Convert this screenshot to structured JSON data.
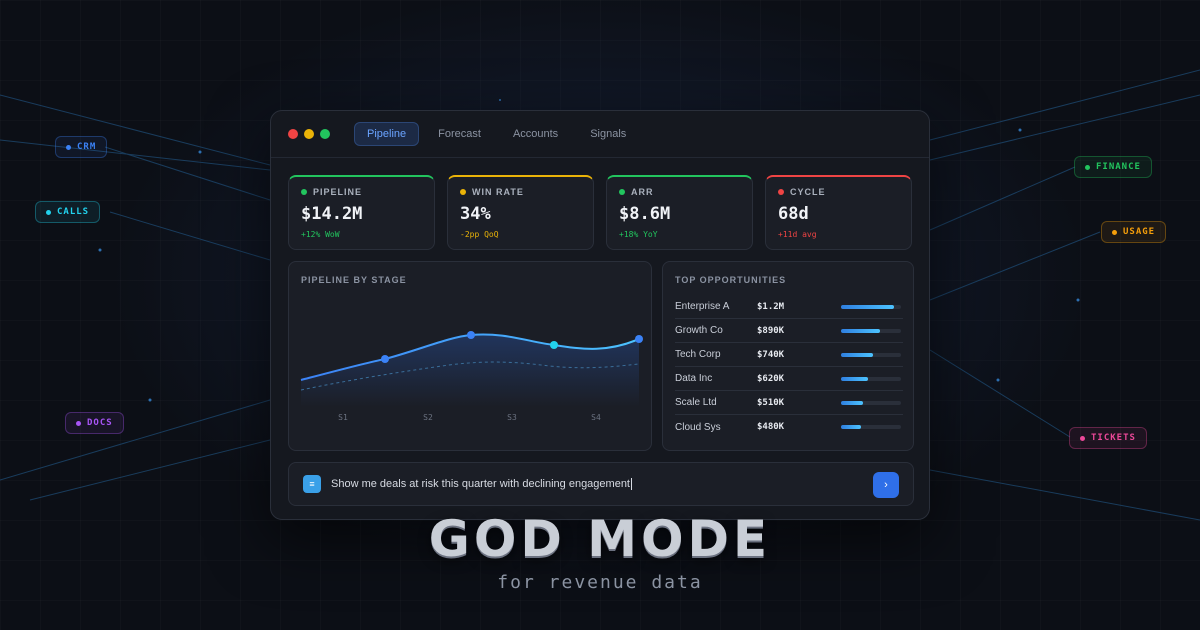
{
  "window": {
    "tabs": [
      {
        "label": "Pipeline",
        "active": true
      },
      {
        "label": "Forecast",
        "active": false
      },
      {
        "label": "Accounts",
        "active": false
      },
      {
        "label": "Signals",
        "active": false
      }
    ]
  },
  "kpis": [
    {
      "label": "PIPELINE",
      "value": "$14.2M",
      "delta": "+12% WoW",
      "color": "#22c55e"
    },
    {
      "label": "WIN RATE",
      "value": "34%",
      "delta": "-2pp QoQ",
      "color": "#eab308"
    },
    {
      "label": "ARR",
      "value": "$8.6M",
      "delta": "+18% YoY",
      "color": "#22c55e"
    },
    {
      "label": "CYCLE",
      "value": "68d",
      "delta": "+11d avg",
      "color": "#ef4444"
    }
  ],
  "pipeline_chart": {
    "title": "PIPELINE BY STAGE",
    "stages": [
      "S1",
      "S2",
      "S3",
      "S4"
    ]
  },
  "opportunities": {
    "title": "TOP OPPORTUNITIES",
    "rows": [
      {
        "name": "Enterprise A",
        "value": "$1.2M",
        "fill": 0.88
      },
      {
        "name": "Growth Co",
        "value": "$890K",
        "fill": 0.65
      },
      {
        "name": "Tech Corp",
        "value": "$740K",
        "fill": 0.54
      },
      {
        "name": "Data Inc",
        "value": "$620K",
        "fill": 0.45
      },
      {
        "name": "Scale Ltd",
        "value": "$510K",
        "fill": 0.37
      },
      {
        "name": "Cloud Sys",
        "value": "$480K",
        "fill": 0.34
      }
    ]
  },
  "prompt": {
    "text": "Show me deals at risk this quarter with declining engagement"
  },
  "side_labels": [
    {
      "label": "CRM",
      "color": "#3b82f6"
    },
    {
      "label": "CALLS",
      "color": "#22d3ee"
    },
    {
      "label": "DOCS",
      "color": "#a855f7"
    },
    {
      "label": "FINANCE",
      "color": "#22c55e"
    },
    {
      "label": "USAGE",
      "color": "#f59e0b"
    },
    {
      "label": "TICKETS",
      "color": "#ec4899"
    }
  ],
  "hero": {
    "title": "GOD MODE",
    "subtitle": "for revenue data"
  }
}
